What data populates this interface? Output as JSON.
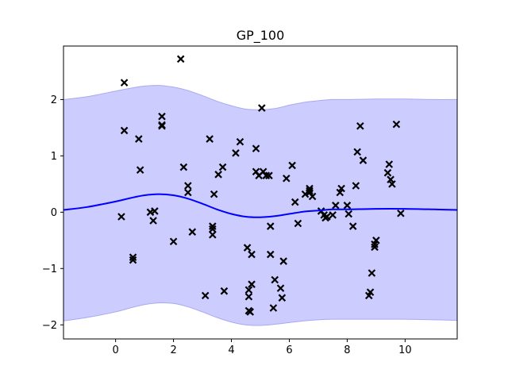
{
  "chart_data": {
    "type": "line",
    "title": "GP_100",
    "xlabel": "",
    "ylabel": "",
    "xlim": [
      -1.8,
      11.8
    ],
    "ylim": [
      -2.25,
      2.95
    ],
    "xticks": [
      0,
      2,
      4,
      6,
      8,
      10
    ],
    "yticks": [
      -2,
      -1,
      0,
      1,
      2
    ],
    "grid": false,
    "legend": "none",
    "colors": {
      "mean": "#0000ff",
      "band_fill": "#ccccff",
      "band_edge": "#a8a8f2",
      "points": "#000000"
    },
    "mean": {
      "x": [
        -1.8,
        -1,
        0,
        0.5,
        1,
        1.5,
        2,
        2.5,
        3,
        3.5,
        4,
        4.5,
        5,
        5.5,
        6,
        6.5,
        7,
        7.5,
        8,
        9,
        10,
        11,
        11.8
      ],
      "y": [
        0.04,
        0.09,
        0.19,
        0.25,
        0.3,
        0.32,
        0.3,
        0.24,
        0.15,
        0.05,
        -0.03,
        -0.08,
        -0.09,
        -0.07,
        -0.03,
        0.01,
        0.03,
        0.05,
        0.05,
        0.06,
        0.06,
        0.05,
        0.04
      ]
    },
    "confidence_band": {
      "x": [
        -1.8,
        -1,
        0,
        0.5,
        1,
        1.5,
        2,
        2.5,
        3,
        3.5,
        4,
        4.5,
        5,
        5.5,
        6,
        6.5,
        7,
        7.5,
        8,
        9,
        10,
        11,
        11.8
      ],
      "upper": [
        2.0,
        2.05,
        2.15,
        2.2,
        2.24,
        2.25,
        2.22,
        2.16,
        2.07,
        1.97,
        1.89,
        1.83,
        1.82,
        1.84,
        1.9,
        1.95,
        1.98,
        2.0,
        2.0,
        2.01,
        2.01,
        2.0,
        2.0
      ],
      "lower": [
        -1.93,
        -1.87,
        -1.77,
        -1.7,
        -1.64,
        -1.61,
        -1.62,
        -1.68,
        -1.77,
        -1.87,
        -1.95,
        -2.0,
        -2.01,
        -1.99,
        -1.96,
        -1.93,
        -1.91,
        -1.9,
        -1.9,
        -1.9,
        -1.9,
        -1.91,
        -1.92
      ]
    },
    "observations": {
      "marker": "x",
      "points": [
        [
          0.3,
          2.3
        ],
        [
          2.25,
          2.72
        ],
        [
          0.3,
          1.45
        ],
        [
          0.8,
          1.3
        ],
        [
          0.85,
          0.75
        ],
        [
          0.2,
          -0.08
        ],
        [
          0.6,
          -0.8
        ],
        [
          0.6,
          -0.85
        ],
        [
          1.2,
          0.0
        ],
        [
          1.35,
          0.02
        ],
        [
          1.3,
          -0.15
        ],
        [
          1.6,
          1.7
        ],
        [
          1.6,
          1.55
        ],
        [
          1.6,
          1.53
        ],
        [
          2.0,
          -0.52
        ],
        [
          2.35,
          0.8
        ],
        [
          2.5,
          0.47
        ],
        [
          2.5,
          0.35
        ],
        [
          2.65,
          -0.35
        ],
        [
          3.1,
          -1.48
        ],
        [
          3.25,
          1.3
        ],
        [
          3.35,
          -0.25
        ],
        [
          3.35,
          -0.3
        ],
        [
          3.35,
          -0.4
        ],
        [
          3.4,
          0.32
        ],
        [
          3.55,
          0.67
        ],
        [
          3.7,
          0.8
        ],
        [
          3.75,
          -1.4
        ],
        [
          4.15,
          1.05
        ],
        [
          4.3,
          1.25
        ],
        [
          4.55,
          -0.63
        ],
        [
          4.6,
          -1.38
        ],
        [
          4.6,
          -1.5
        ],
        [
          4.6,
          -1.75
        ],
        [
          4.65,
          -1.77
        ],
        [
          4.7,
          -1.28
        ],
        [
          4.7,
          -0.75
        ],
        [
          4.85,
          1.13
        ],
        [
          4.85,
          0.72
        ],
        [
          4.95,
          0.65
        ],
        [
          5.05,
          1.85
        ],
        [
          5.1,
          0.72
        ],
        [
          5.2,
          0.65
        ],
        [
          5.3,
          0.65
        ],
        [
          5.35,
          -0.25
        ],
        [
          5.35,
          -0.75
        ],
        [
          5.45,
          -1.7
        ],
        [
          5.5,
          -1.2
        ],
        [
          5.7,
          -1.35
        ],
        [
          5.75,
          -1.52
        ],
        [
          5.8,
          -0.87
        ],
        [
          5.9,
          0.6
        ],
        [
          6.1,
          0.83
        ],
        [
          6.2,
          0.18
        ],
        [
          6.3,
          -0.2
        ],
        [
          6.55,
          0.32
        ],
        [
          6.7,
          0.42
        ],
        [
          6.7,
          0.35
        ],
        [
          6.8,
          0.28
        ],
        [
          6.7,
          0.38
        ],
        [
          7.1,
          0.02
        ],
        [
          7.2,
          -0.05
        ],
        [
          7.25,
          -0.1
        ],
        [
          7.3,
          -0.08
        ],
        [
          7.5,
          -0.05
        ],
        [
          7.6,
          0.12
        ],
        [
          7.75,
          0.35
        ],
        [
          7.8,
          0.42
        ],
        [
          8.0,
          0.12
        ],
        [
          8.05,
          -0.03
        ],
        [
          8.2,
          -0.25
        ],
        [
          8.3,
          0.47
        ],
        [
          8.35,
          1.07
        ],
        [
          8.45,
          1.53
        ],
        [
          8.55,
          0.92
        ],
        [
          8.75,
          -1.48
        ],
        [
          8.8,
          -1.42
        ],
        [
          8.85,
          -1.08
        ],
        [
          8.95,
          -0.62
        ],
        [
          8.95,
          -0.57
        ],
        [
          9.0,
          -0.5
        ],
        [
          9.4,
          0.7
        ],
        [
          9.45,
          0.85
        ],
        [
          9.5,
          0.58
        ],
        [
          9.55,
          0.5
        ],
        [
          9.7,
          1.56
        ],
        [
          9.85,
          -0.02
        ]
      ]
    }
  }
}
